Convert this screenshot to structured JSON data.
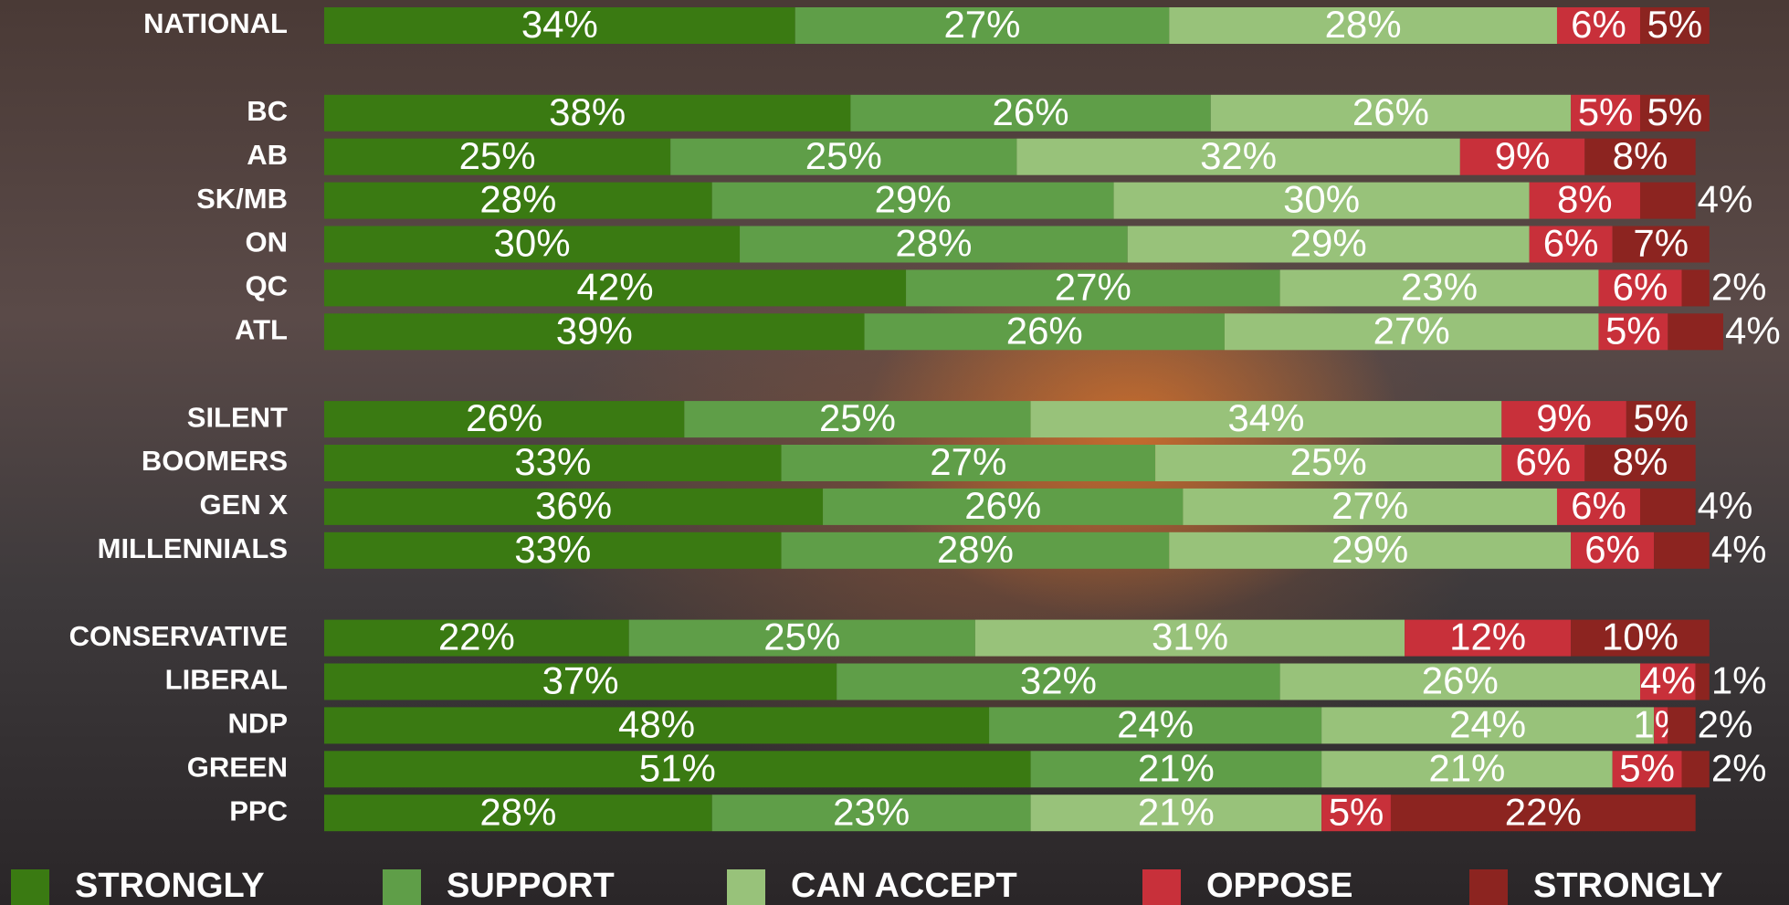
{
  "chart_data": {
    "type": "stacked-bar",
    "categories": [
      "NATIONAL",
      null,
      "BC",
      "AB",
      "SK/MB",
      "ON",
      "QC",
      "ATL",
      null,
      "SILENT",
      "BOOMERS",
      "GEN X",
      "MILLENNIALS",
      null,
      "CONSERVATIVE",
      "LIBERAL",
      "NDP",
      "GREEN",
      "PPC"
    ],
    "series": [
      {
        "name": "STRONGLY",
        "color": "#3a7a12",
        "values": [
          34,
          null,
          38,
          25,
          28,
          30,
          42,
          39,
          null,
          26,
          33,
          36,
          33,
          null,
          22,
          37,
          48,
          51,
          28
        ],
        "value_labels": [
          "34%",
          null,
          "38%",
          "25%",
          "28%",
          "30%",
          "42%",
          "39%",
          null,
          "26%",
          "33%",
          "36%",
          "33%",
          null,
          "22%",
          "37%",
          "48%",
          "51%",
          "28%"
        ]
      },
      {
        "name": "SUPPORT",
        "color": "#5f9e48",
        "values": [
          27,
          null,
          26,
          25,
          29,
          28,
          27,
          26,
          null,
          25,
          27,
          26,
          28,
          null,
          25,
          32,
          24,
          21,
          23
        ],
        "value_labels": [
          "27%",
          null,
          "26%",
          "25%",
          "29%",
          "28%",
          "27%",
          "26%",
          null,
          "25%",
          "27%",
          "26%",
          "28%",
          null,
          "25%",
          "32%",
          "24%",
          "21%",
          "23%"
        ]
      },
      {
        "name": "CAN ACCEPT",
        "color": "#98c27a",
        "values": [
          28,
          null,
          26,
          32,
          30,
          29,
          23,
          27,
          null,
          34,
          25,
          27,
          29,
          null,
          31,
          26,
          24,
          21,
          21
        ],
        "value_labels": [
          "28%",
          null,
          "26%",
          "32%",
          "30%",
          "29%",
          "23%",
          "27%",
          null,
          "34%",
          "25%",
          "27%",
          "29%",
          null,
          "31%",
          "26%",
          "24%",
          "21%",
          "21%"
        ]
      },
      {
        "name": "OPPOSE",
        "color": "#c8303a",
        "values": [
          6,
          null,
          5,
          9,
          8,
          6,
          6,
          5,
          null,
          9,
          6,
          6,
          6,
          null,
          12,
          4,
          1,
          5,
          5
        ],
        "value_labels": [
          "6%",
          null,
          "5%",
          "9%",
          "8%",
          "6%",
          "6%",
          "5%",
          null,
          "9%",
          "6%",
          "6%",
          "6%",
          null,
          "12%",
          "4%",
          "1%",
          "5%",
          "5%"
        ]
      },
      {
        "name": "STRONGLY",
        "color": "#8c2420",
        "values": [
          5,
          null,
          5,
          8,
          4,
          7,
          2,
          4,
          null,
          5,
          8,
          4,
          4,
          null,
          10,
          1,
          2,
          2,
          22
        ],
        "value_labels": [
          "5%",
          null,
          "5%",
          "8%",
          "4%",
          "7%",
          "2%",
          "4%",
          null,
          "5%",
          "8%",
          "4%",
          "4%",
          null,
          "10%",
          "1%",
          "2%",
          "2%",
          "22%"
        ]
      }
    ]
  }
}
